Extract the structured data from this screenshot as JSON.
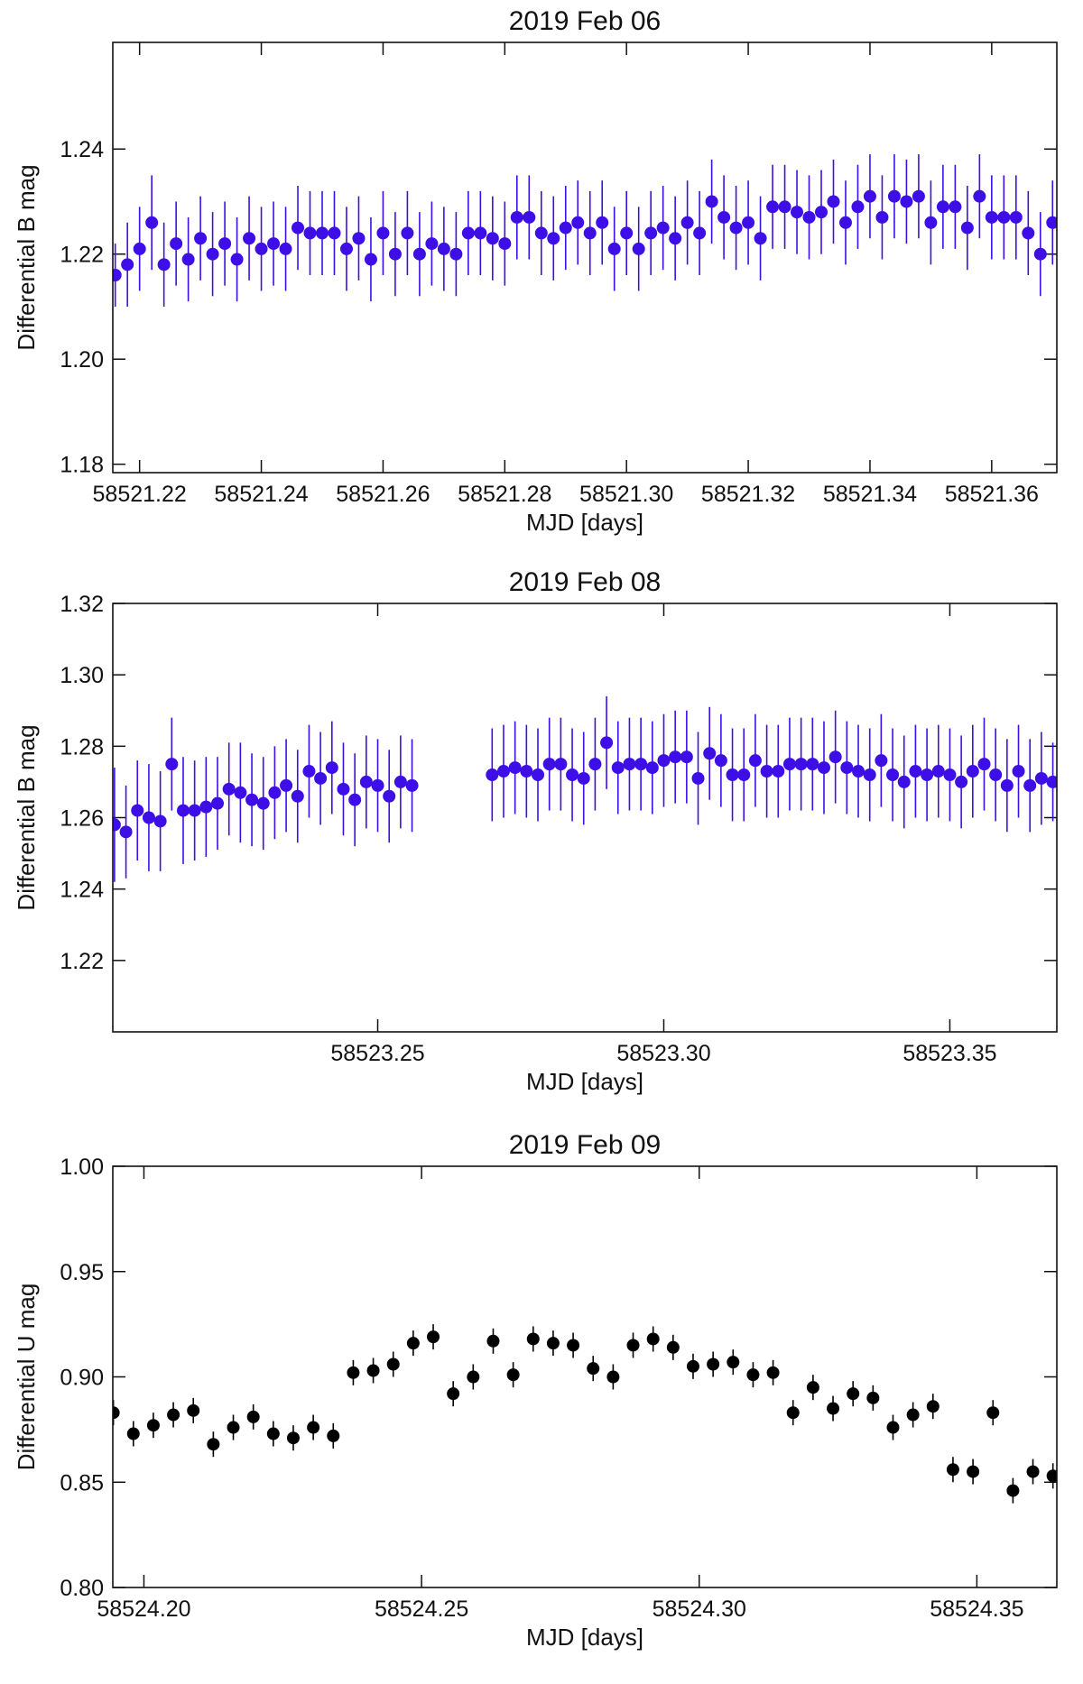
{
  "chart_data": [
    {
      "type": "scatter",
      "title": "2019 Feb 06",
      "x_label": "MJD [days]",
      "y_label": "Differential B mag",
      "color": "#3d0ee6",
      "xlim": [
        58521.2156,
        58521.3707
      ],
      "ylim": [
        1.1784,
        1.2603
      ],
      "xticks": [
        58521.22,
        58521.24,
        58521.26,
        58521.28,
        {
          "value": 58521.3,
          "label": "58521.30"
        },
        58521.32,
        58521.34,
        58521.36
      ],
      "yticks": [
        1.18,
        {
          "value": 1.2,
          "label": "1.20"
        },
        1.22,
        1.24
      ],
      "x": [
        58521.216,
        58521.218,
        58521.22,
        58521.222,
        58521.224,
        58521.226,
        58521.228,
        58521.23,
        58521.232,
        58521.234,
        58521.236,
        58521.238,
        58521.24,
        58521.242,
        58521.244,
        58521.246,
        58521.248,
        58521.25,
        58521.252,
        58521.254,
        58521.256,
        58521.258,
        58521.26,
        58521.262,
        58521.264,
        58521.266,
        58521.268,
        58521.27,
        58521.272,
        58521.274,
        58521.276,
        58521.278,
        58521.28,
        58521.282,
        58521.284,
        58521.286,
        58521.288,
        58521.29,
        58521.292,
        58521.294,
        58521.296,
        58521.298,
        58521.3,
        58521.302,
        58521.304,
        58521.306,
        58521.308,
        58521.31,
        58521.312,
        58521.314,
        58521.316,
        58521.318,
        58521.32,
        58521.322,
        58521.324,
        58521.326,
        58521.328,
        58521.33,
        58521.332,
        58521.334,
        58521.336,
        58521.338,
        58521.34,
        58521.342,
        58521.344,
        58521.346,
        58521.348,
        58521.35,
        58521.352,
        58521.354,
        58521.356,
        58521.358,
        58521.36,
        58521.362,
        58521.364,
        58521.366,
        58521.368,
        58521.37
      ],
      "values": [
        1.216,
        1.218,
        1.221,
        1.226,
        1.218,
        1.222,
        1.219,
        1.223,
        1.22,
        1.222,
        1.219,
        1.223,
        1.221,
        1.222,
        1.221,
        1.225,
        1.224,
        1.224,
        1.224,
        1.221,
        1.223,
        1.219,
        1.224,
        1.22,
        1.224,
        1.22,
        1.222,
        1.221,
        1.22,
        1.224,
        1.224,
        1.223,
        1.222,
        1.227,
        1.227,
        1.224,
        1.223,
        1.225,
        1.226,
        1.224,
        1.226,
        1.221,
        1.224,
        1.221,
        1.224,
        1.225,
        1.223,
        1.226,
        1.224,
        1.23,
        1.227,
        1.225,
        1.226,
        1.223,
        1.229,
        1.229,
        1.228,
        1.227,
        1.228,
        1.23,
        1.226,
        1.229,
        1.231,
        1.227,
        1.231,
        1.23,
        1.231,
        1.226,
        1.229,
        1.229,
        1.225,
        1.231,
        1.227,
        1.227,
        1.227,
        1.224,
        1.22,
        1.226
      ],
      "errors": [
        0.006,
        0.008,
        0.008,
        0.009,
        0.008,
        0.008,
        0.008,
        0.008,
        0.008,
        0.008,
        0.008,
        0.008,
        0.008,
        0.008,
        0.008,
        0.008,
        0.008,
        0.008,
        0.008,
        0.008,
        0.008,
        0.008,
        0.008,
        0.008,
        0.008,
        0.008,
        0.008,
        0.008,
        0.008,
        0.008,
        0.008,
        0.008,
        0.008,
        0.008,
        0.008,
        0.008,
        0.008,
        0.008,
        0.008,
        0.008,
        0.008,
        0.008,
        0.008,
        0.008,
        0.008,
        0.008,
        0.008,
        0.008,
        0.008,
        0.008,
        0.008,
        0.008,
        0.008,
        0.008,
        0.008,
        0.008,
        0.008,
        0.008,
        0.008,
        0.008,
        0.008,
        0.008,
        0.008,
        0.008,
        0.008,
        0.008,
        0.008,
        0.008,
        0.008,
        0.008,
        0.008,
        0.008,
        0.008,
        0.008,
        0.008,
        0.008,
        0.008,
        0.008
      ]
    },
    {
      "type": "scatter",
      "title": "2019 Feb 08",
      "x_label": "MJD [days]",
      "y_label": "Differential B mag",
      "color": "#3d0ee6",
      "xlim": [
        58523.2037,
        58523.3687
      ],
      "ylim": [
        1.2,
        1.32
      ],
      "xticks": [
        58523.25,
        {
          "value": 58523.3,
          "label": "58523.30"
        },
        58523.35
      ],
      "yticks": [
        1.22,
        1.24,
        1.26,
        1.28,
        {
          "value": 1.3,
          "label": "1.30"
        },
        1.32
      ],
      "x": [
        58523.204,
        58523.206,
        58523.208,
        58523.21,
        58523.212,
        58523.214,
        58523.216,
        58523.218,
        58523.22,
        58523.222,
        58523.224,
        58523.226,
        58523.228,
        58523.23,
        58523.232,
        58523.234,
        58523.236,
        58523.238,
        58523.24,
        58523.242,
        58523.244,
        58523.246,
        58523.248,
        58523.25,
        58523.252,
        58523.254,
        58523.256,
        58523.27,
        58523.272,
        58523.274,
        58523.276,
        58523.278,
        58523.28,
        58523.282,
        58523.284,
        58523.286,
        58523.288,
        58523.29,
        58523.292,
        58523.294,
        58523.296,
        58523.298,
        58523.3,
        58523.302,
        58523.304,
        58523.306,
        58523.308,
        58523.31,
        58523.312,
        58523.314,
        58523.316,
        58523.318,
        58523.32,
        58523.322,
        58523.324,
        58523.326,
        58523.328,
        58523.33,
        58523.332,
        58523.334,
        58523.336,
        58523.338,
        58523.34,
        58523.342,
        58523.344,
        58523.346,
        58523.348,
        58523.35,
        58523.352,
        58523.354,
        58523.356,
        58523.358,
        58523.36,
        58523.362,
        58523.364,
        58523.366,
        58523.368
      ],
      "values": [
        1.258,
        1.256,
        1.262,
        1.26,
        1.259,
        1.275,
        1.262,
        1.262,
        1.263,
        1.264,
        1.268,
        1.267,
        1.265,
        1.264,
        1.267,
        1.269,
        1.266,
        1.273,
        1.271,
        1.274,
        1.268,
        1.265,
        1.27,
        1.269,
        1.266,
        1.27,
        1.269,
        1.272,
        1.273,
        1.274,
        1.273,
        1.272,
        1.275,
        1.275,
        1.272,
        1.271,
        1.275,
        1.281,
        1.274,
        1.275,
        1.275,
        1.274,
        1.276,
        1.277,
        1.277,
        1.271,
        1.278,
        1.276,
        1.272,
        1.272,
        1.276,
        1.273,
        1.273,
        1.275,
        1.275,
        1.275,
        1.274,
        1.277,
        1.274,
        1.273,
        1.272,
        1.276,
        1.272,
        1.27,
        1.273,
        1.272,
        1.273,
        1.272,
        1.27,
        1.273,
        1.275,
        1.272,
        1.269,
        1.273,
        1.269,
        1.271,
        1.27
      ],
      "errors": [
        0.016,
        0.013,
        0.014,
        0.015,
        0.014,
        0.013,
        0.015,
        0.014,
        0.014,
        0.013,
        0.013,
        0.014,
        0.013,
        0.013,
        0.013,
        0.013,
        0.013,
        0.013,
        0.013,
        0.013,
        0.013,
        0.013,
        0.013,
        0.013,
        0.013,
        0.013,
        0.013,
        0.013,
        0.013,
        0.013,
        0.013,
        0.013,
        0.013,
        0.013,
        0.013,
        0.013,
        0.013,
        0.013,
        0.013,
        0.013,
        0.013,
        0.013,
        0.013,
        0.013,
        0.013,
        0.013,
        0.013,
        0.013,
        0.013,
        0.013,
        0.013,
        0.013,
        0.013,
        0.013,
        0.013,
        0.013,
        0.013,
        0.013,
        0.013,
        0.013,
        0.013,
        0.013,
        0.013,
        0.013,
        0.013,
        0.013,
        0.013,
        0.013,
        0.013,
        0.013,
        0.013,
        0.013,
        0.013,
        0.013,
        0.013,
        0.013,
        0.011
      ]
    },
    {
      "type": "scatter",
      "title": "2019 Feb 09",
      "x_label": "MJD [days]",
      "y_label": "Differential U mag",
      "color": "#000000",
      "xlim": [
        58524.1944,
        58524.3644
      ],
      "ylim": [
        0.8,
        1.0
      ],
      "xticks": [
        {
          "value": 58524.2,
          "label": "58524.20"
        },
        58524.25,
        {
          "value": 58524.3,
          "label": "58524.30"
        },
        58524.35
      ],
      "yticks": [
        {
          "value": 0.8,
          "label": "0.80"
        },
        0.85,
        {
          "value": 0.9,
          "label": "0.90"
        },
        0.95,
        {
          "value": 1.0,
          "label": "1.00"
        }
      ],
      "x": [
        58524.1945,
        58524.1981,
        58524.2017,
        58524.2053,
        58524.2089,
        58524.2125,
        58524.2161,
        58524.2197,
        58524.2233,
        58524.2269,
        58524.2305,
        58524.2341,
        58524.2377,
        58524.2413,
        58524.2449,
        58524.2485,
        58524.2521,
        58524.2557,
        58524.2593,
        58524.2629,
        58524.2665,
        58524.2701,
        58524.2737,
        58524.2773,
        58524.2809,
        58524.2845,
        58524.2881,
        58524.2917,
        58524.2953,
        58524.2989,
        58524.3025,
        58524.3061,
        58524.3097,
        58524.3133,
        58524.3169,
        58524.3205,
        58524.3241,
        58524.3277,
        58524.3313,
        58524.3349,
        58524.3385,
        58524.3421,
        58524.3457,
        58524.3493,
        58524.3529,
        58524.3565,
        58524.3601,
        58524.3637
      ],
      "values": [
        0.883,
        0.873,
        0.877,
        0.882,
        0.884,
        0.868,
        0.876,
        0.881,
        0.873,
        0.871,
        0.876,
        0.872,
        0.902,
        0.903,
        0.906,
        0.916,
        0.919,
        0.892,
        0.9,
        0.917,
        0.901,
        0.918,
        0.916,
        0.915,
        0.904,
        0.9,
        0.915,
        0.918,
        0.914,
        0.905,
        0.906,
        0.907,
        0.901,
        0.902,
        0.883,
        0.895,
        0.885,
        0.892,
        0.89,
        0.876,
        0.882,
        0.886,
        0.856,
        0.855,
        0.883,
        0.846,
        0.855,
        0.853
      ],
      "errors": [
        0.006,
        0.006,
        0.006,
        0.006,
        0.006,
        0.006,
        0.006,
        0.006,
        0.006,
        0.006,
        0.006,
        0.006,
        0.006,
        0.006,
        0.006,
        0.006,
        0.006,
        0.006,
        0.006,
        0.006,
        0.006,
        0.006,
        0.006,
        0.006,
        0.006,
        0.006,
        0.006,
        0.006,
        0.006,
        0.006,
        0.006,
        0.006,
        0.006,
        0.006,
        0.006,
        0.006,
        0.006,
        0.006,
        0.006,
        0.006,
        0.006,
        0.006,
        0.006,
        0.006,
        0.006,
        0.006,
        0.006,
        0.006
      ]
    }
  ]
}
